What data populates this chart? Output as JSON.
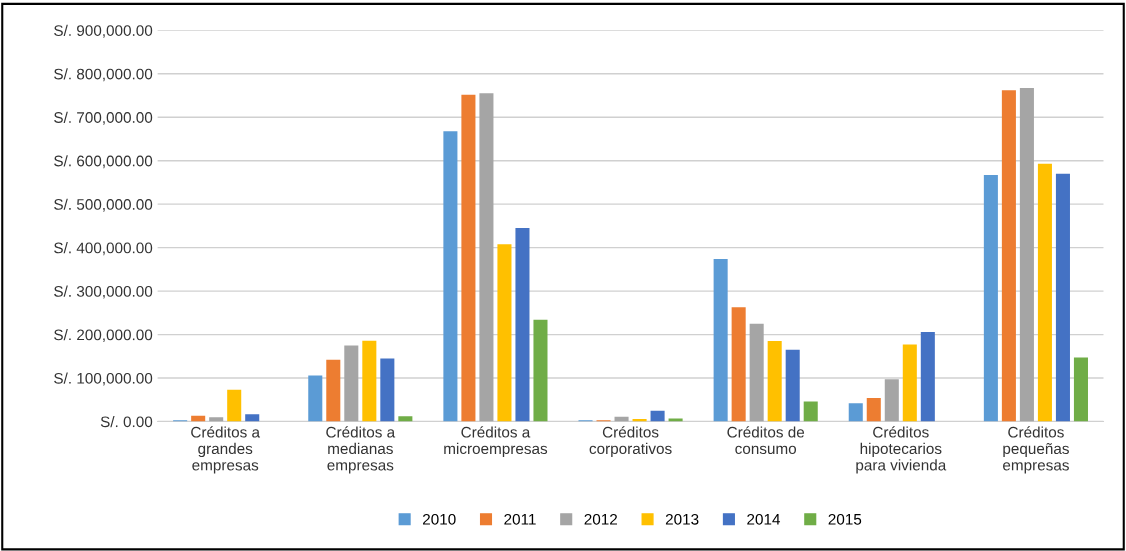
{
  "chart_data": {
    "type": "bar",
    "categories": [
      "Créditos a\ngrandes\nempresas",
      "Créditos a\nmedianas\nempresas",
      "Créditos a\nmicroempresas",
      "Créditos\ncorporativos",
      "Créditos de\nconsumo",
      "Créditos\nhipotecarios\npara vivienda",
      "Créditos\npequeñas\nempresas"
    ],
    "series": [
      {
        "name": "2010",
        "color": "#5b9bd5",
        "values": [
          3000,
          106000,
          668000,
          3000,
          374000,
          42000,
          567000
        ]
      },
      {
        "name": "2011",
        "color": "#ed7d31",
        "values": [
          13000,
          142000,
          752000,
          3000,
          263000,
          54000,
          762000
        ]
      },
      {
        "name": "2012",
        "color": "#a5a5a5",
        "values": [
          10000,
          175000,
          755000,
          11000,
          225000,
          97000,
          767000
        ]
      },
      {
        "name": "2013",
        "color": "#ffc000",
        "values": [
          73000,
          186000,
          408000,
          6000,
          185000,
          177000,
          593000
        ]
      },
      {
        "name": "2014",
        "color": "#4472c4",
        "values": [
          17000,
          145000,
          445000,
          25000,
          165000,
          206000,
          570000
        ]
      },
      {
        "name": "2015",
        "color": "#70ad47",
        "values": [
          0,
          12000,
          234000,
          7000,
          46000,
          0,
          147000
        ]
      }
    ],
    "ylim": [
      0,
      900000
    ],
    "yticks": [
      {
        "value": 0,
        "label": "S/. 0.00"
      },
      {
        "value": 100000,
        "label": "S/. 100,000.00"
      },
      {
        "value": 200000,
        "label": "S/. 200,000.00"
      },
      {
        "value": 300000,
        "label": "S/. 300,000.00"
      },
      {
        "value": 400000,
        "label": "S/. 400,000.00"
      },
      {
        "value": 500000,
        "label": "S/. 500,000.00"
      },
      {
        "value": 600000,
        "label": "S/. 600,000.00"
      },
      {
        "value": 700000,
        "label": "S/. 700,000.00"
      },
      {
        "value": 800000,
        "label": "S/. 800,000.00"
      },
      {
        "value": 900000,
        "label": "S/. 900,000.00"
      }
    ],
    "grid": "y",
    "legend": "bottom"
  }
}
